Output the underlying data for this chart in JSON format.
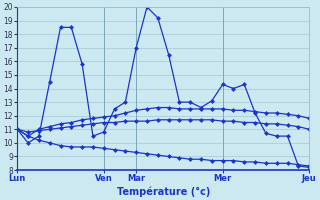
{
  "xlabel": "Température (°c)",
  "bg_color": "#cce8f0",
  "line_color": "#1a35c8",
  "grid_color": "#9bbfcc",
  "ylim": [
    8,
    20
  ],
  "yticks": [
    8,
    9,
    10,
    11,
    12,
    13,
    14,
    15,
    16,
    17,
    18,
    19,
    20
  ],
  "day_positions": [
    0,
    8,
    11,
    19,
    27
  ],
  "day_labels": [
    "Lun",
    "Ven",
    "Mar",
    "Mer",
    "Jeu"
  ],
  "n_points": 28,
  "line1": [
    11,
    10,
    10.5,
    14.5,
    18.5,
    18.5,
    15.8,
    10.5,
    10.8,
    12.5,
    13,
    17,
    20,
    19.2,
    16.5,
    13,
    13,
    12.6,
    13.1,
    14.3,
    14,
    14.3,
    12.2,
    10.7,
    10.5,
    10.5,
    8.3,
    8.2
  ],
  "line2": [
    11,
    10.5,
    11.0,
    11.2,
    11.4,
    11.5,
    11.7,
    11.8,
    11.9,
    12.0,
    12.2,
    12.4,
    12.5,
    12.6,
    12.6,
    12.5,
    12.5,
    12.5,
    12.5,
    12.5,
    12.4,
    12.4,
    12.3,
    12.2,
    12.2,
    12.1,
    12.0,
    11.8
  ],
  "line3": [
    11,
    10.8,
    10.9,
    11.0,
    11.1,
    11.2,
    11.3,
    11.4,
    11.5,
    11.5,
    11.6,
    11.6,
    11.6,
    11.7,
    11.7,
    11.7,
    11.7,
    11.7,
    11.7,
    11.6,
    11.6,
    11.5,
    11.5,
    11.4,
    11.4,
    11.3,
    11.2,
    11.0
  ],
  "line4": [
    11,
    10.5,
    10.2,
    10.0,
    9.8,
    9.7,
    9.7,
    9.7,
    9.6,
    9.5,
    9.4,
    9.3,
    9.2,
    9.1,
    9.0,
    8.9,
    8.8,
    8.8,
    8.7,
    8.7,
    8.7,
    8.6,
    8.6,
    8.5,
    8.5,
    8.5,
    8.4,
    8.3
  ]
}
